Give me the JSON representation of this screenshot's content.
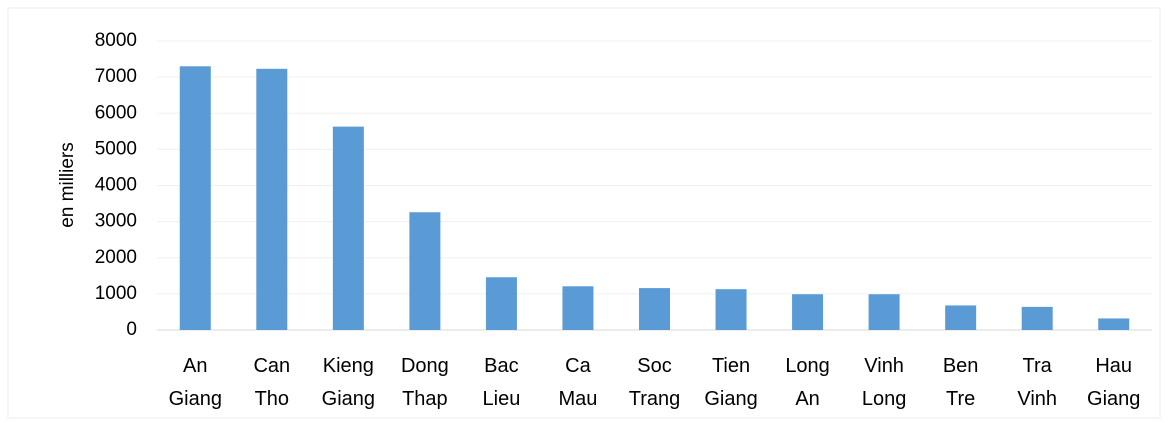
{
  "chart_data": {
    "type": "bar",
    "categories": [
      "An Giang",
      "Can Tho",
      "Kieng Giang",
      "Dong Thap",
      "Bac Lieu",
      "Ca Mau",
      "Soc Trang",
      "Tien Giang",
      "Long An",
      "Vinh Long",
      "Ben Tre",
      "Tra Vinh",
      "Hau Giang"
    ],
    "values": [
      7300,
      7230,
      5630,
      3260,
      1460,
      1210,
      1160,
      1130,
      990,
      990,
      680,
      640,
      320
    ],
    "color": "#5b9bd5",
    "y_label": "en milliers",
    "ylim": [
      0,
      8000
    ],
    "yticks": [
      0,
      1000,
      2000,
      3000,
      4000,
      5000,
      6000,
      7000,
      8000
    ],
    "grid": true
  }
}
